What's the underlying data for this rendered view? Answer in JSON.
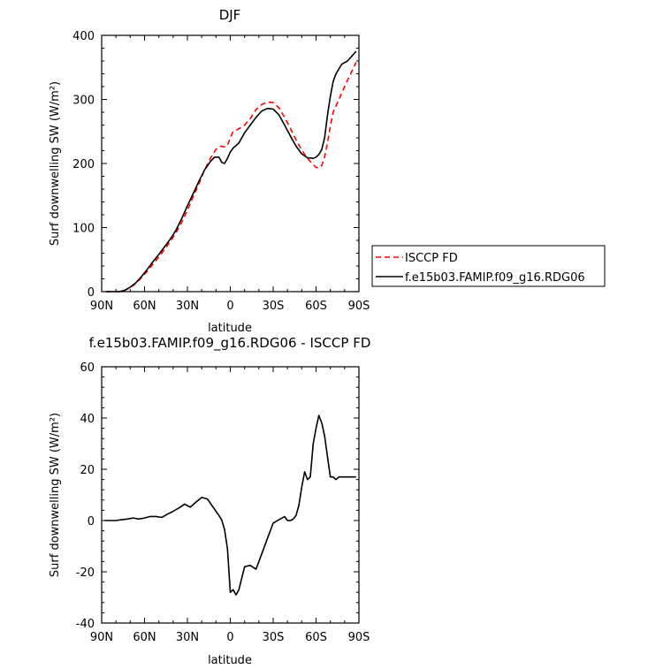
{
  "chart_data": [
    {
      "type": "line",
      "title": "DJF",
      "xlabel": "latitude",
      "ylabel": "Surf downwelling SW (W/m²)",
      "x_tick_labels": [
        "90N",
        "60N",
        "30N",
        "0",
        "30S",
        "60S",
        "90S"
      ],
      "x_tick_values": [
        90,
        60,
        30,
        0,
        -30,
        -60,
        -90
      ],
      "y_ticks": [
        0,
        100,
        200,
        300,
        400
      ],
      "xlim": [
        90,
        -90
      ],
      "ylim": [
        0,
        400
      ],
      "grid": false,
      "legend_placement": "right",
      "series": [
        {
          "name": "ISCCP FD",
          "style": "dashed",
          "color": "#ff0000",
          "x": [
            87,
            82,
            78,
            74,
            70,
            66,
            62,
            58,
            54,
            50,
            46,
            42,
            38,
            34,
            30,
            26,
            22,
            18,
            14,
            10,
            7,
            4,
            2,
            0,
            -2,
            -6,
            -10,
            -14,
            -18,
            -22,
            -26,
            -30,
            -34,
            -38,
            -42,
            -46,
            -50,
            -54,
            -58,
            -60,
            -62,
            -64,
            -66,
            -68,
            -70,
            -72,
            -74,
            -78,
            -82,
            -86,
            -88
          ],
          "y": [
            0,
            0,
            0,
            2,
            6,
            13,
            22,
            32,
            43,
            54,
            66,
            78,
            92,
            108,
            127,
            148,
            168,
            190,
            208,
            222,
            227,
            226,
            228,
            240,
            250,
            254,
            260,
            270,
            284,
            292,
            296,
            295,
            287,
            272,
            255,
            237,
            221,
            208,
            198,
            194,
            193,
            197,
            210,
            232,
            258,
            280,
            290,
            310,
            330,
            348,
            358
          ]
        },
        {
          "name": "f.e15b03.FAMIP.f09_g16.RDG06",
          "style": "solid",
          "color": "#000000",
          "x": [
            87,
            82,
            78,
            74,
            70,
            66,
            62,
            58,
            54,
            50,
            46,
            42,
            38,
            34,
            30,
            26,
            22,
            18,
            14,
            11,
            8,
            6,
            4,
            2,
            0,
            -2,
            -6,
            -10,
            -14,
            -18,
            -22,
            -26,
            -30,
            -34,
            -38,
            -42,
            -46,
            -50,
            -54,
            -58,
            -60,
            -62,
            -64,
            -66,
            -68,
            -70,
            -72,
            -74,
            -78,
            -82,
            -86,
            -88
          ],
          "y": [
            0,
            0,
            0,
            2,
            7,
            14,
            24,
            35,
            47,
            58,
            70,
            82,
            96,
            114,
            134,
            153,
            172,
            190,
            203,
            210,
            210,
            202,
            200,
            208,
            218,
            224,
            232,
            248,
            260,
            272,
            282,
            286,
            285,
            276,
            260,
            243,
            227,
            215,
            209,
            208,
            210,
            214,
            222,
            240,
            275,
            305,
            328,
            340,
            355,
            360,
            370,
            375
          ]
        }
      ]
    },
    {
      "type": "line",
      "title": "f.e15b03.FAMIP.f09_g16.RDG06 - ISCCP FD",
      "xlabel": "latitude",
      "ylabel": "Surf downwelling SW (W/m²)",
      "x_tick_labels": [
        "90N",
        "60N",
        "30N",
        "0",
        "30S",
        "60S",
        "90S"
      ],
      "x_tick_values": [
        90,
        60,
        30,
        0,
        -30,
        -60,
        -90
      ],
      "y_ticks": [
        -40,
        -20,
        0,
        20,
        40,
        60
      ],
      "xlim": [
        90,
        -90
      ],
      "ylim": [
        -40,
        60
      ],
      "grid": false,
      "series": [
        {
          "style": "solid",
          "color": "#000000",
          "x": [
            88,
            84,
            80,
            76,
            72,
            68,
            64,
            60,
            56,
            52,
            48,
            44,
            40,
            36,
            32,
            28,
            24,
            20,
            16,
            12,
            8,
            6,
            4,
            2,
            0,
            -2,
            -4,
            -6,
            -10,
            -14,
            -18,
            -22,
            -26,
            -30,
            -34,
            -38,
            -40,
            -42,
            -44,
            -46,
            -48,
            -50,
            -52,
            -54,
            -56,
            -58,
            -60,
            -62,
            -64,
            -66,
            -68,
            -70,
            -72,
            -74,
            -76,
            -78,
            -80,
            -84,
            -86,
            -88
          ],
          "y": [
            0,
            0,
            0,
            0.3,
            0.6,
            1,
            0.6,
            1,
            1.6,
            1.6,
            1.2,
            2.5,
            3.6,
            4.9,
            6.4,
            5.2,
            7.2,
            9,
            8.4,
            5.2,
            2,
            0.2,
            -3.5,
            -11,
            -28,
            -27,
            -29,
            -27,
            -18,
            -17.5,
            -19,
            -13,
            -7,
            -1,
            0.3,
            1.5,
            0,
            0,
            0.5,
            2,
            6,
            13,
            19,
            16,
            17,
            30,
            36,
            41,
            38,
            33,
            25,
            17,
            17,
            16,
            17,
            17,
            17,
            17,
            17,
            17
          ]
        }
      ]
    }
  ]
}
